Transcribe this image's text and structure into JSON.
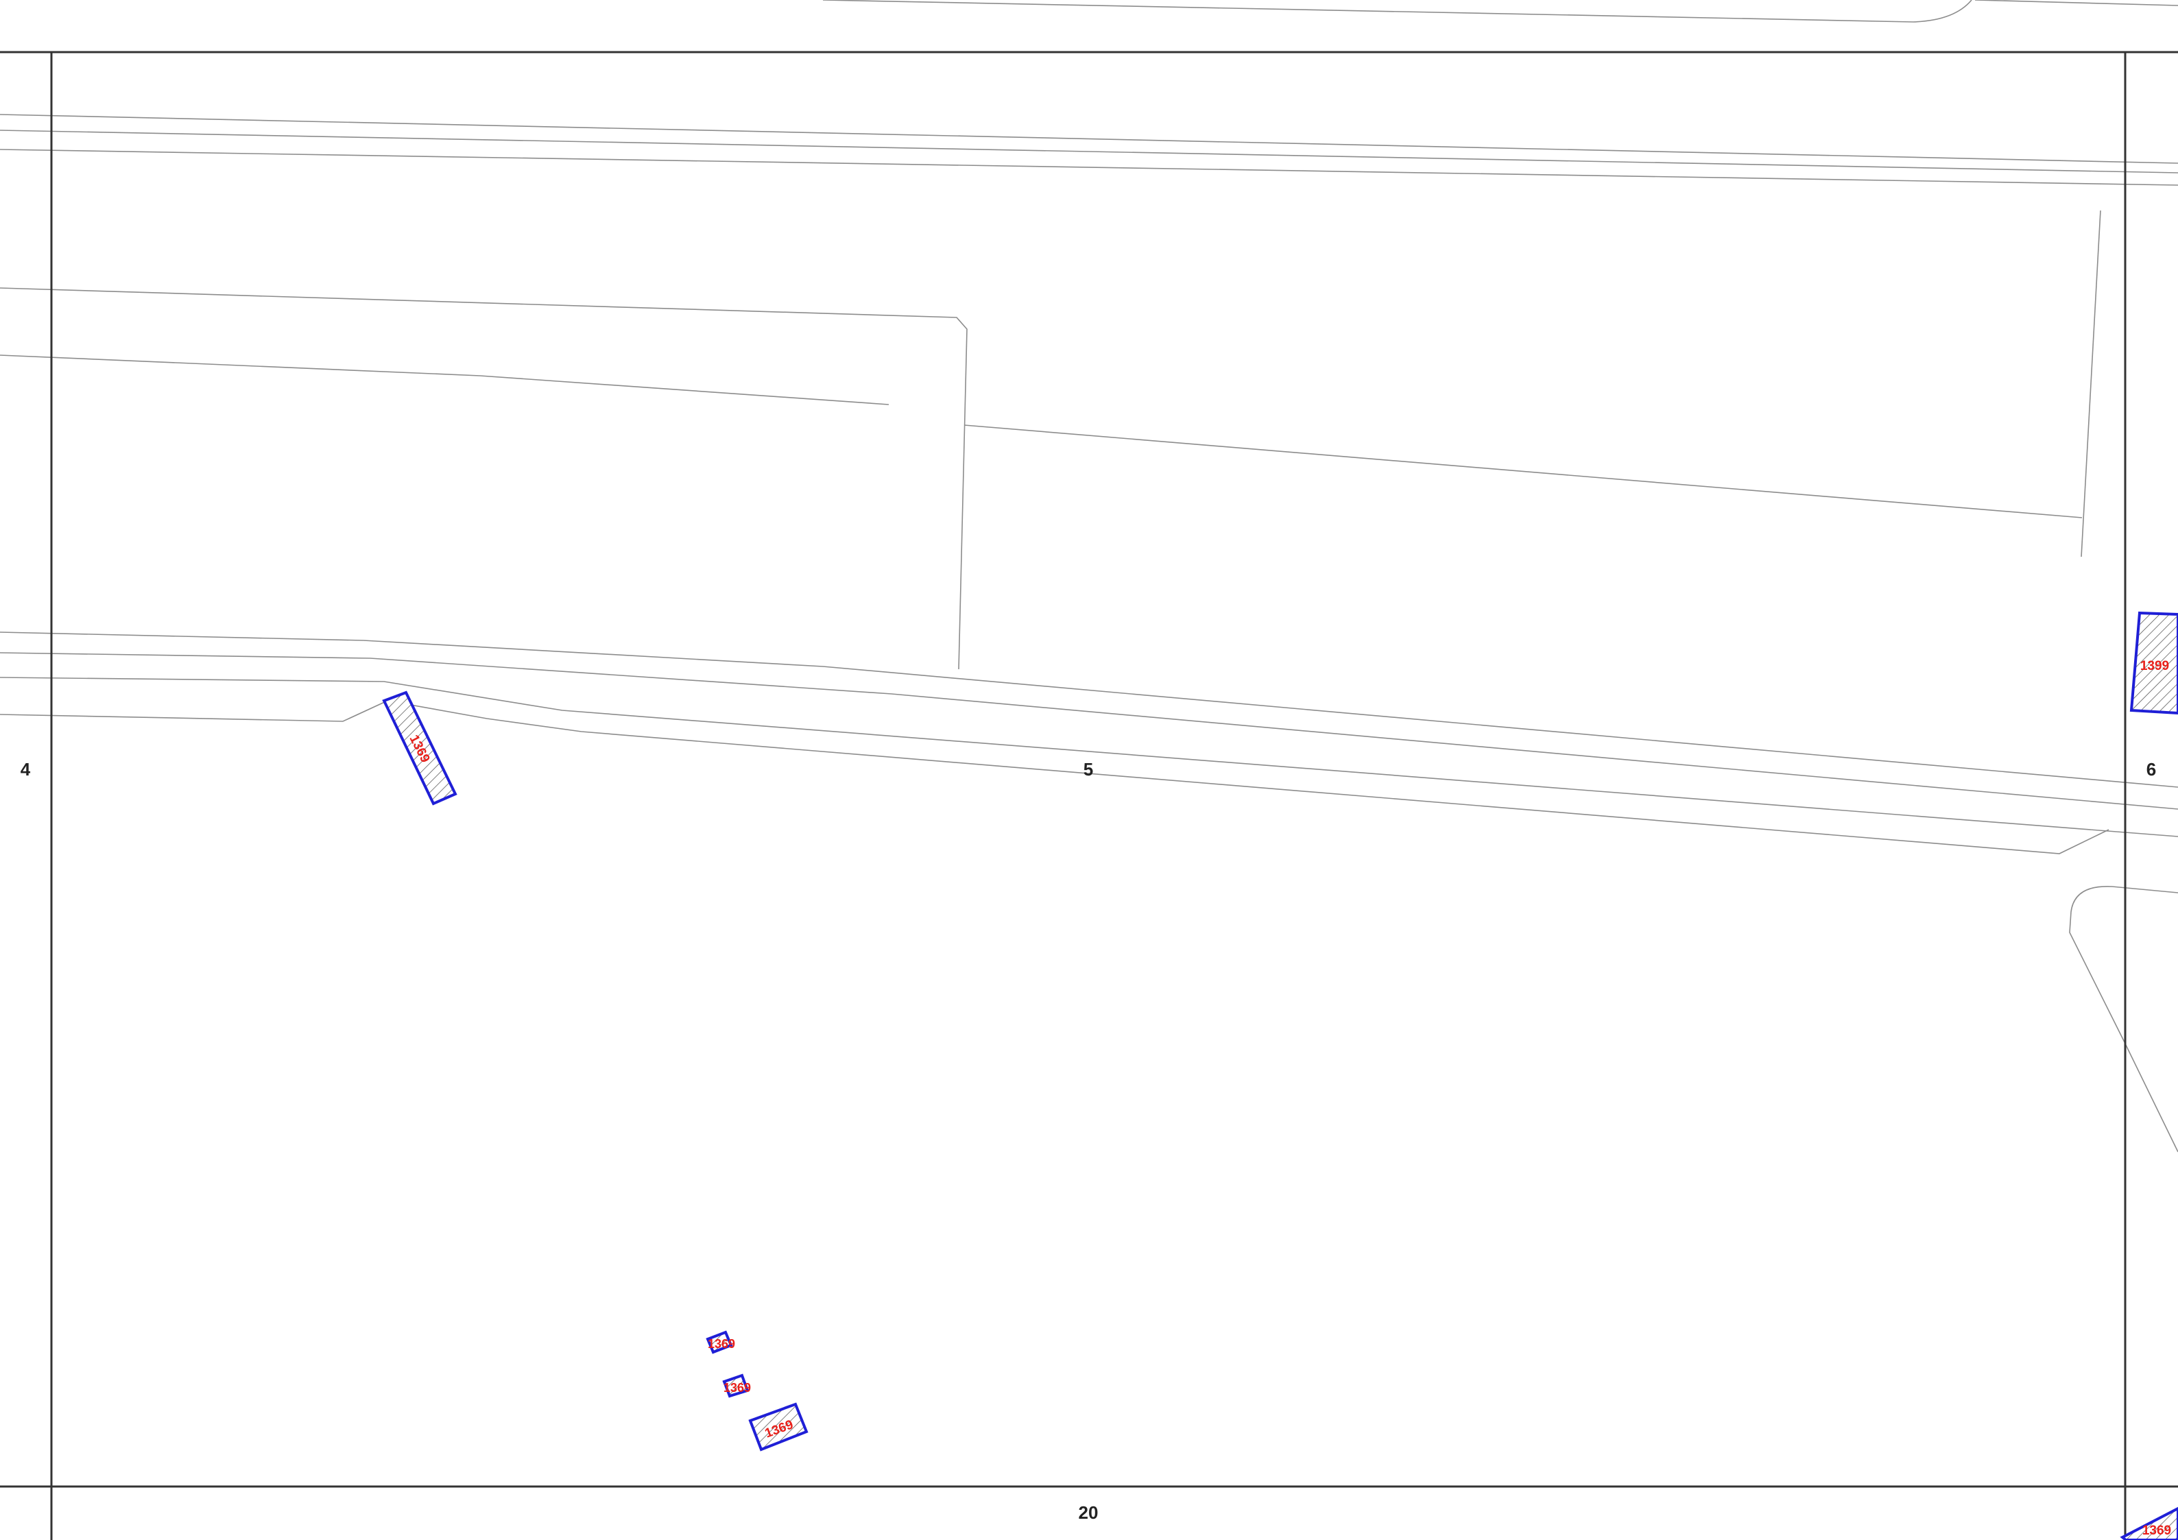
{
  "sheet": {
    "left_neighbor": "4",
    "current": "5",
    "right_neighbor": "6",
    "bottom_neighbor": "20"
  },
  "parcels": [
    {
      "id": "building-main",
      "label": "1369"
    },
    {
      "id": "building-small-1",
      "label": "1369"
    },
    {
      "id": "building-small-2",
      "label": "1369"
    },
    {
      "id": "building-small-3",
      "label": "1369"
    },
    {
      "id": "building-edge-right",
      "label": "1399"
    },
    {
      "id": "building-edge-corner",
      "label": "1369"
    }
  ],
  "colors": {
    "parcel_outline": "#1f1fd6",
    "parcel_label": "#e8201a",
    "road_line": "#8c8c8c",
    "sheet_border": "#333333"
  }
}
